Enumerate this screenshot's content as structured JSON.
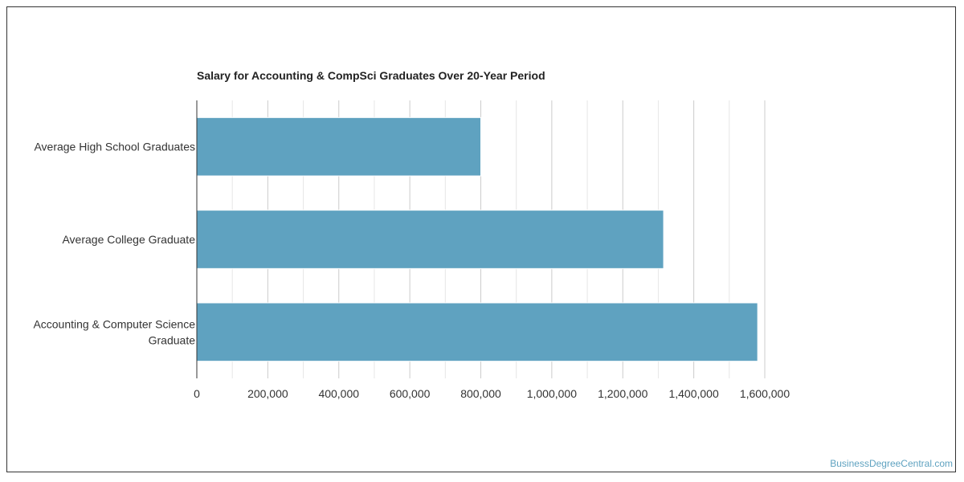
{
  "chart_data": {
    "type": "bar",
    "orientation": "horizontal",
    "title": "Salary for Accounting & CompSci Graduates Over 20-Year Period",
    "categories": [
      [
        "Average High School Graduates"
      ],
      [
        "Average College Graduate"
      ],
      [
        "Accounting & Computer Science",
        "Graduate"
      ]
    ],
    "values": [
      800000,
      1315000,
      1580000
    ],
    "xlim": [
      0,
      1600000
    ],
    "xticks": [
      0,
      200000,
      400000,
      600000,
      800000,
      1000000,
      1200000,
      1400000,
      1600000
    ],
    "xtick_labels": [
      "0",
      "200,000",
      "400,000",
      "600,000",
      "800,000",
      "1,000,000",
      "1,200,000",
      "1,400,000",
      "1,600,000"
    ],
    "grid": true,
    "bar_color": "#5fa2c0"
  },
  "credit": "BusinessDegreeCentral.com"
}
